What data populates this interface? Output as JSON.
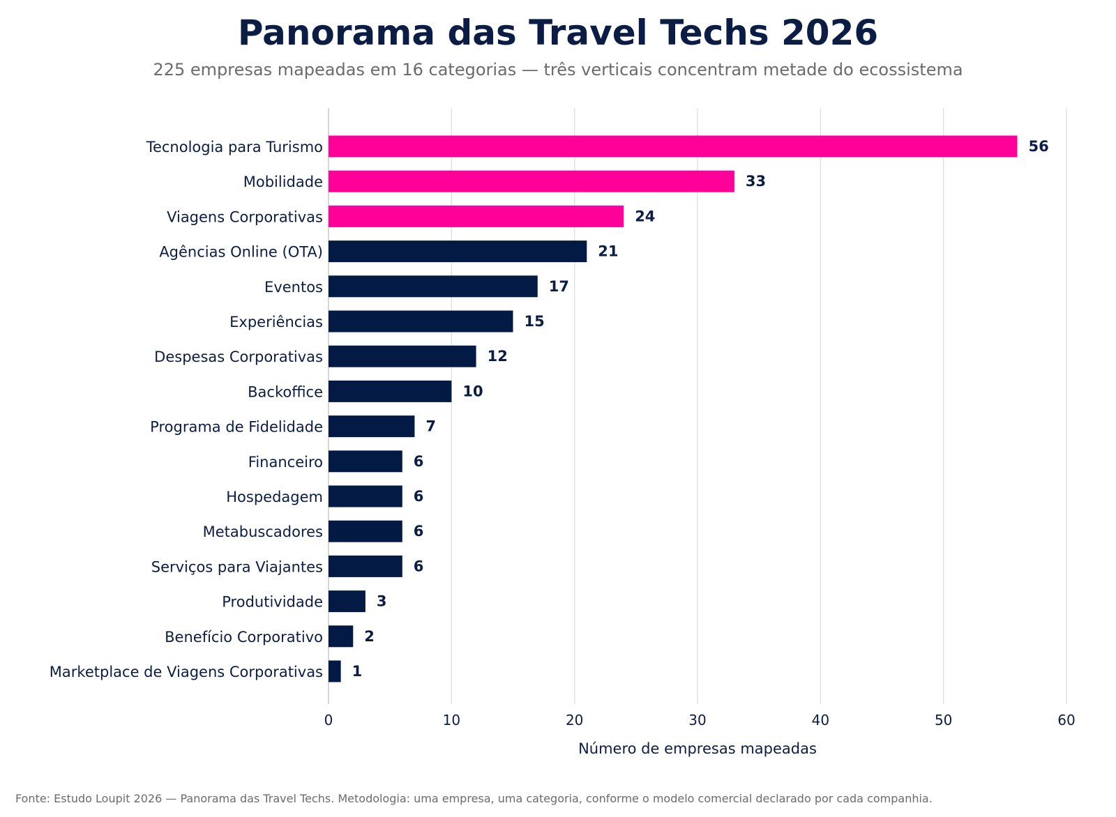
{
  "title": "Panorama das Travel Techs 2026",
  "subtitle": "225 empresas mapeadas em 16 categorias — três verticais concentram metade do ecossistema",
  "footer": "Fonte: Estudo Loupit 2026 — Panorama das Travel Techs.  Metodologia: uma empresa, uma categoria, conforme o modelo comercial declarado por cada companhia.",
  "colors": {
    "highlight": "#ff0099",
    "default": "#031a45",
    "grid": "#dddddd",
    "text": "#0b1d45"
  },
  "chart_data": {
    "type": "bar",
    "orientation": "horizontal",
    "categories": [
      "Tecnologia para Turismo",
      "Mobilidade",
      "Viagens Corporativas",
      "Agências Online (OTA)",
      "Eventos",
      "Experiências",
      "Despesas Corporativas",
      "Backoffice",
      "Programa de Fidelidade",
      "Financeiro",
      "Hospedagem",
      "Metabuscadores",
      "Serviços para Viajantes",
      "Produtividade",
      "Benefício Corporativo",
      "Marketplace de Viagens Corporativas"
    ],
    "values": [
      56,
      33,
      24,
      21,
      17,
      15,
      12,
      10,
      7,
      6,
      6,
      6,
      6,
      3,
      2,
      1
    ],
    "highlighted": [
      true,
      true,
      true,
      false,
      false,
      false,
      false,
      false,
      false,
      false,
      false,
      false,
      false,
      false,
      false,
      false
    ],
    "xlabel": "Número de empresas mapeadas",
    "ylabel": "",
    "xlim": [
      0,
      60
    ],
    "xticks": [
      0,
      10,
      20,
      30,
      40,
      50,
      60
    ],
    "grid": "vertical"
  }
}
